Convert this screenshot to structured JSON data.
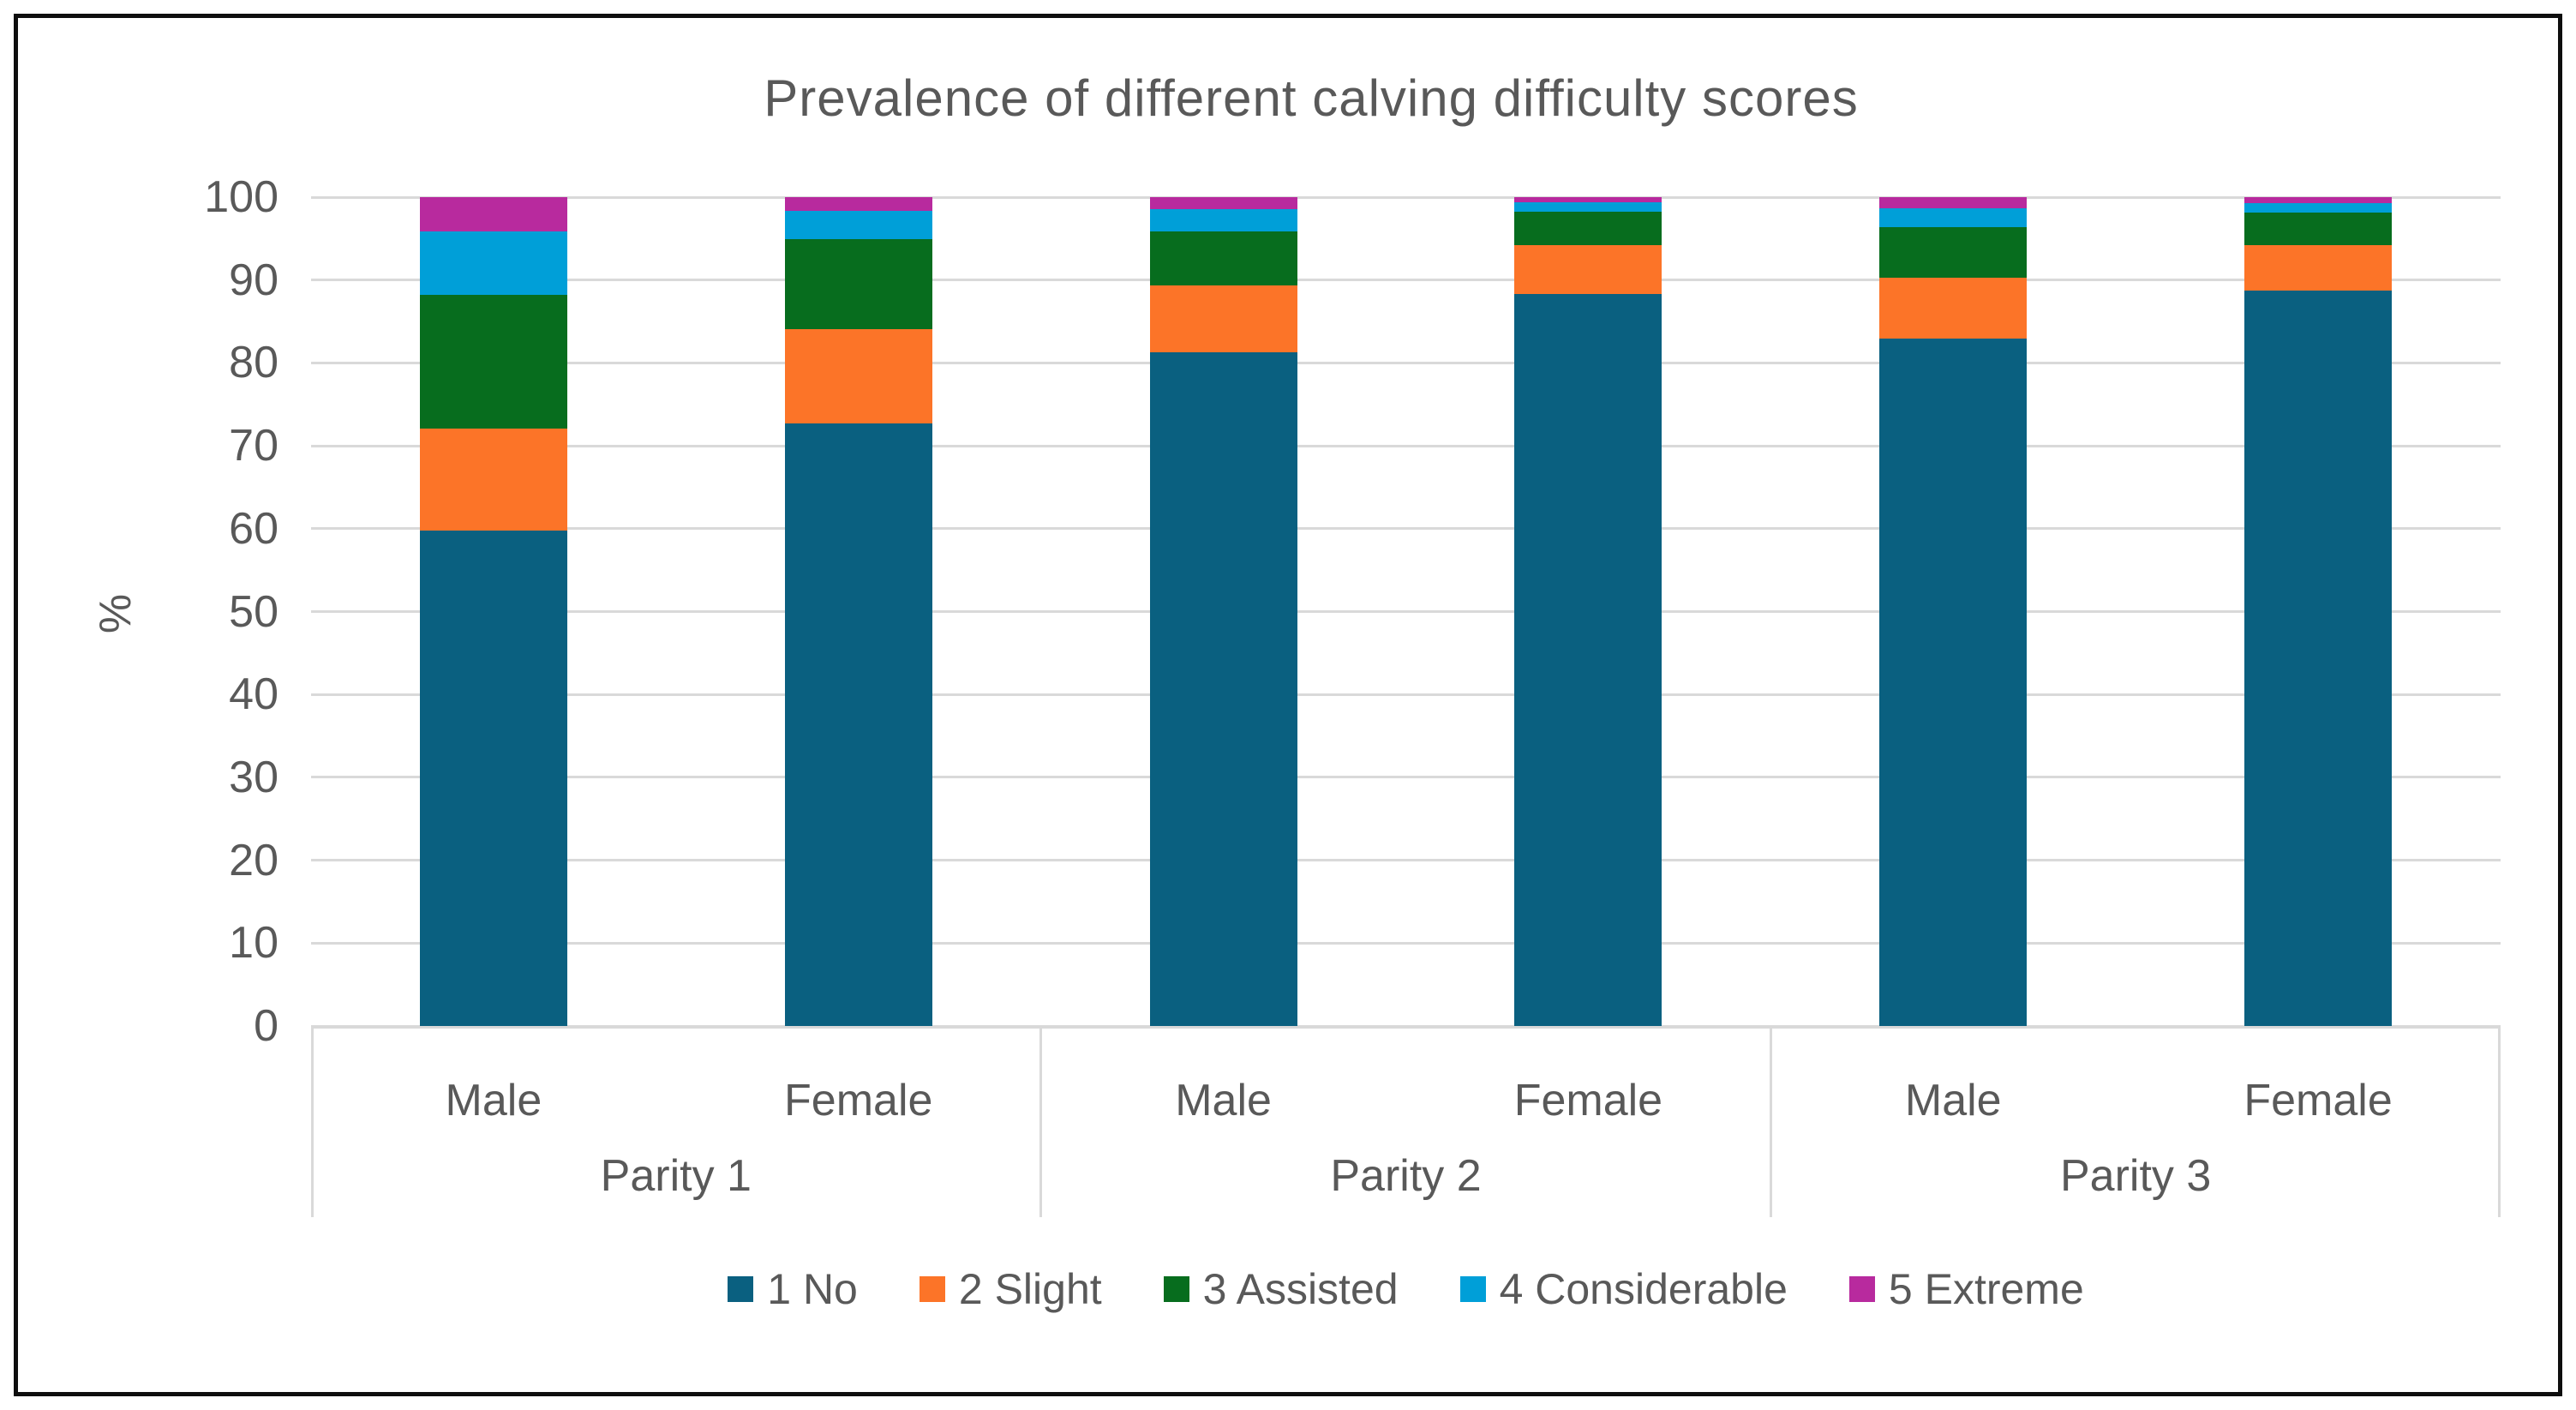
{
  "title": "Prevalence of different calving difficulty scores",
  "y_axis": {
    "label": "%",
    "ticks": [
      100,
      90,
      80,
      70,
      60,
      50,
      40,
      30,
      20,
      10,
      0
    ]
  },
  "x_axis": {
    "sex_labels": [
      "Male",
      "Female",
      "Male",
      "Female",
      "Male",
      "Female"
    ],
    "group_labels": [
      "Parity 1",
      "Parity 2",
      "Parity 3"
    ]
  },
  "legend": {
    "items": [
      {
        "label": "1 No",
        "color": "#0a6080"
      },
      {
        "label": "2 Slight",
        "color": "#fc7428"
      },
      {
        "label": "3 Assisted",
        "color": "#076d1e"
      },
      {
        "label": "4 Considerable",
        "color": "#009fd8"
      },
      {
        "label": "5 Extreme",
        "color": "#b82a9e"
      }
    ]
  },
  "colors": {
    "text": "#595959",
    "gridline": "#d9d9d9",
    "frame_border": "#0e0e0e",
    "background": "#ffffff"
  },
  "chart_data": {
    "type": "bar",
    "stacked": true,
    "percent_stacked": true,
    "title": "Prevalence of different calving difficulty scores",
    "xlabel": "",
    "ylabel": "%",
    "ylim": [
      0,
      100
    ],
    "grid": true,
    "legend_position": "bottom",
    "groups": [
      "Parity 1",
      "Parity 2",
      "Parity 3"
    ],
    "categories": [
      "Parity 1 Male",
      "Parity 1 Female",
      "Parity 2 Male",
      "Parity 2 Female",
      "Parity 3 Male",
      "Parity 3 Female"
    ],
    "series": [
      {
        "name": "1 No",
        "color": "#0a6080",
        "values": [
          59.8,
          72.7,
          81.3,
          88.3,
          82.9,
          88.7
        ]
      },
      {
        "name": "2 Slight",
        "color": "#fc7428",
        "values": [
          12.3,
          11.4,
          8.0,
          5.9,
          7.4,
          5.5
        ]
      },
      {
        "name": "3 Assisted",
        "color": "#076d1e",
        "values": [
          16.1,
          10.8,
          6.6,
          4.0,
          6.1,
          3.9
        ]
      },
      {
        "name": "4 Considerable",
        "color": "#009fd8",
        "values": [
          7.7,
          3.5,
          2.7,
          1.2,
          2.3,
          1.2
        ]
      },
      {
        "name": "5 Extreme",
        "color": "#b82a9e",
        "values": [
          4.1,
          1.6,
          1.4,
          0.6,
          1.3,
          0.7
        ]
      }
    ]
  }
}
